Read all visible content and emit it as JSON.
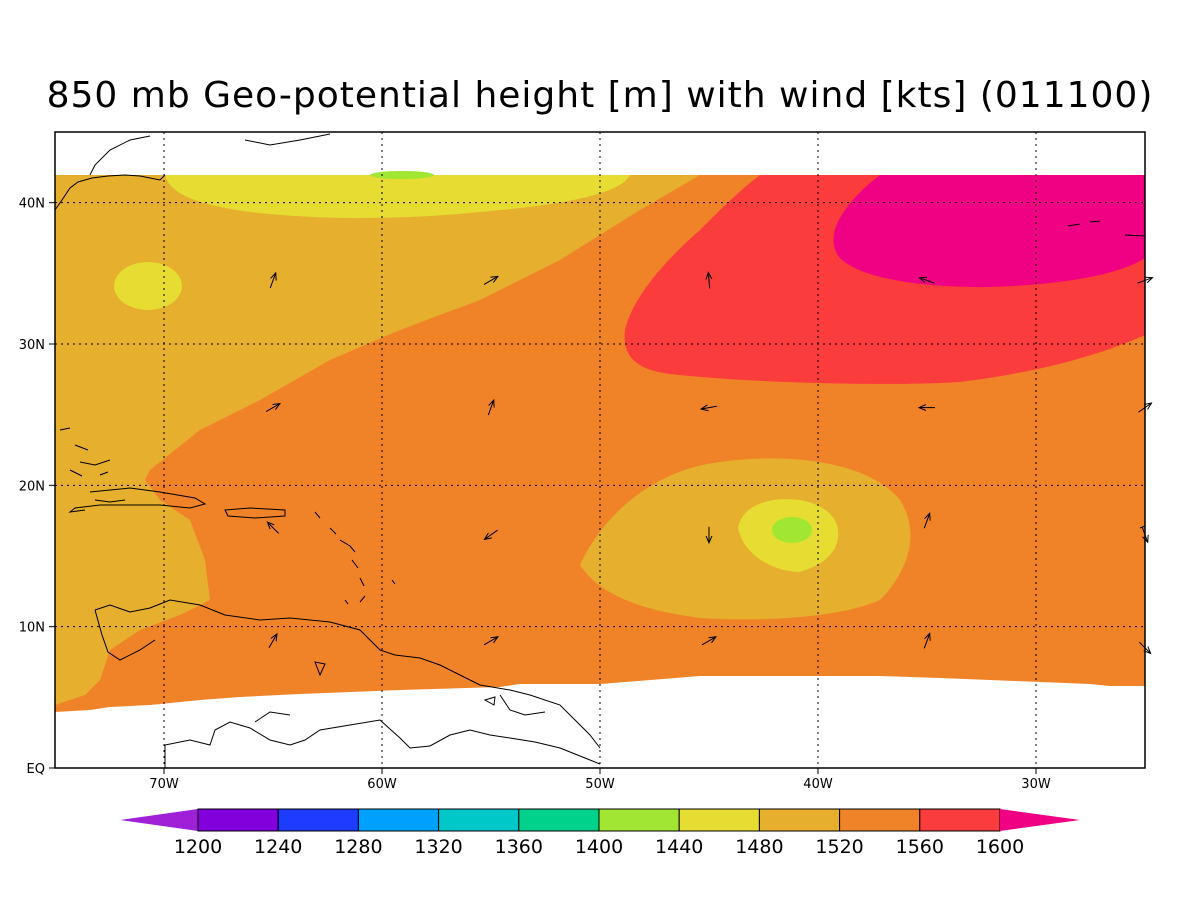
{
  "title": "850 mb Geo-potential height [m] with wind [kts] (011100)",
  "map": {
    "lon_range": [
      -75,
      -25
    ],
    "lat_range": [
      0,
      45
    ],
    "data_lat_top": 42,
    "lat_ticks": [
      {
        "value": 40,
        "label": "40N"
      },
      {
        "value": 30,
        "label": "30N"
      },
      {
        "value": 20,
        "label": "20N"
      },
      {
        "value": 10,
        "label": "10N"
      },
      {
        "value": 0,
        "label": "EQ"
      }
    ],
    "lon_ticks": [
      {
        "value": -70,
        "label": "70W"
      },
      {
        "value": -60,
        "label": "60W"
      },
      {
        "value": -50,
        "label": "50W"
      },
      {
        "value": -40,
        "label": "40W"
      },
      {
        "value": -30,
        "label": "30W"
      }
    ],
    "grid": true
  },
  "colorbar": {
    "levels": [
      1200,
      1240,
      1280,
      1320,
      1360,
      1400,
      1440,
      1480,
      1520,
      1560,
      1600
    ],
    "colors": [
      "#a020d8",
      "#8200dc",
      "#1e3cff",
      "#00a0ff",
      "#00c8c8",
      "#00d28c",
      "#a0e632",
      "#e6dc32",
      "#e6af2d",
      "#f08228",
      "#fa3c3c",
      "#f00082"
    ]
  },
  "wind_vectors": [
    {
      "lon": -65,
      "lat": 34.5,
      "dir": 70
    },
    {
      "lon": -55,
      "lat": 34.5,
      "dir": 30
    },
    {
      "lon": -45,
      "lat": 34.5,
      "dir": 95
    },
    {
      "lon": -35,
      "lat": 34.5,
      "dir": 160
    },
    {
      "lon": -25,
      "lat": 34.5,
      "dir": 20
    },
    {
      "lon": -65,
      "lat": 25.5,
      "dir": 30
    },
    {
      "lon": -55,
      "lat": 25.5,
      "dir": 70
    },
    {
      "lon": -45,
      "lat": 25.5,
      "dir": 190
    },
    {
      "lon": -35,
      "lat": 25.5,
      "dir": 180
    },
    {
      "lon": -25,
      "lat": 25.5,
      "dir": 35
    },
    {
      "lon": -65,
      "lat": 17,
      "dir": 135
    },
    {
      "lon": -55,
      "lat": 16.5,
      "dir": 215
    },
    {
      "lon": -45,
      "lat": 16.5,
      "dir": 270
    },
    {
      "lon": -35,
      "lat": 17.5,
      "dir": 70
    },
    {
      "lon": -25,
      "lat": 16.5,
      "dir": 290
    },
    {
      "lon": -65,
      "lat": 9,
      "dir": 60
    },
    {
      "lon": -55,
      "lat": 9,
      "dir": 30
    },
    {
      "lon": -45,
      "lat": 9,
      "dir": 30
    },
    {
      "lon": -35,
      "lat": 9,
      "dir": 70
    },
    {
      "lon": -25,
      "lat": 8.5,
      "dir": 315
    }
  ]
}
